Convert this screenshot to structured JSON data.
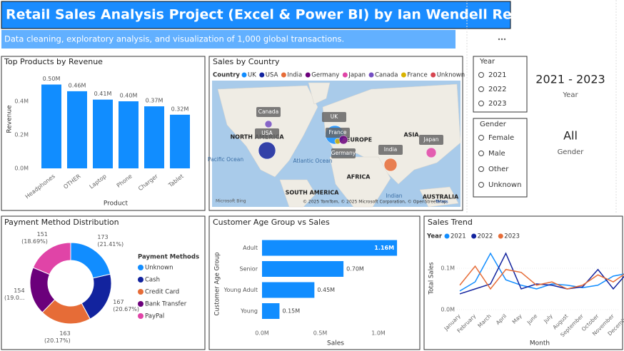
{
  "header": {
    "title": "Retail Sales Analysis Project (Excel & Power BI) by Ian Wendell Real",
    "subtitle": "Data cleaning, exploratory analysis, and visualization of 1,000 global transactions."
  },
  "chart_data": [
    {
      "type": "bar",
      "title": "Top Products by Revenue",
      "x_label": "Product",
      "y_label": "Revenue",
      "categories": [
        "Headphones",
        "OTHER",
        "Laptop",
        "Phone",
        "Charger",
        "Tablet"
      ],
      "values": [
        0.5,
        0.46,
        0.41,
        0.4,
        0.37,
        0.32
      ],
      "value_labels": [
        "0.50M",
        "0.46M",
        "0.41M",
        "0.40M",
        "0.37M",
        "0.32M"
      ],
      "color": "#118DFF",
      "ylim": [
        0,
        0.55
      ],
      "yticks": [
        {
          "value": 0,
          "label": "0.0M"
        },
        {
          "value": 0.2,
          "label": "0.2M"
        },
        {
          "value": 0.4,
          "label": "0.4M"
        }
      ]
    },
    {
      "type": "donut",
      "title": "Payment Method Distribution",
      "legend_title": "Payment Methods",
      "categories": [
        "Unknown",
        "Cash",
        "Credit Card",
        "Bank Transfer",
        "PayPal"
      ],
      "values": [
        173,
        167,
        163,
        154,
        151
      ],
      "percent_labels": [
        "(21.41%)",
        "(20.67%)",
        "(20.17%)",
        "(19.0...",
        "(18.69%)"
      ],
      "colors": [
        "#118DFF",
        "#12239E",
        "#E66C37",
        "#6B007B",
        "#E044A7"
      ]
    },
    {
      "type": "barh",
      "title": "Customer Age Group vs Sales",
      "x_label": "Sales",
      "y_label": "Customer Age Group",
      "categories": [
        "Adult",
        "Senior",
        "Young Adult",
        "Young"
      ],
      "values": [
        1.16,
        0.7,
        0.45,
        0.15
      ],
      "value_labels": [
        "1.16M",
        "0.70M",
        "0.45M",
        "0.15M"
      ],
      "color": "#118DFF",
      "xlim": [
        0,
        1.25
      ],
      "xticks": [
        {
          "value": 0,
          "label": "0.0M"
        },
        {
          "value": 0.5,
          "label": "0.5M"
        },
        {
          "value": 1,
          "label": "1.0M"
        }
      ]
    },
    {
      "type": "line",
      "title": "Sales Trend",
      "x_label": "Month",
      "y_label": "Total Sales",
      "legend_title": "Year",
      "categories": [
        "January",
        "February",
        "March",
        "April",
        "May",
        "June",
        "July",
        "August",
        "September",
        "October",
        "November",
        "December"
      ],
      "series": [
        {
          "name": "2021",
          "color": "#118DFF",
          "values": [
            0.045,
            0.067,
            0.136,
            0.072,
            0.059,
            0.05,
            0.062,
            0.059,
            0.053,
            0.059,
            0.081,
            0.088
          ]
        },
        {
          "name": "2022",
          "color": "#12239E",
          "values": [
            0.038,
            0.05,
            0.062,
            0.136,
            0.05,
            0.062,
            0.059,
            0.05,
            0.055,
            0.097,
            0.05,
            0.093
          ]
        },
        {
          "name": "2023",
          "color": "#E66C37",
          "values": [
            0.059,
            0.105,
            0.05,
            0.097,
            0.09,
            0.059,
            0.067,
            0.05,
            0.059,
            0.084,
            0.067,
            0.093
          ]
        }
      ],
      "ylim": [
        0,
        0.15
      ],
      "yticks": [
        {
          "value": 0,
          "label": "0.0M"
        },
        {
          "value": 0.1,
          "label": "0.1M"
        }
      ]
    }
  ],
  "map": {
    "title": "Sales by Country",
    "legend_title": "Country",
    "countries": [
      {
        "name": "UK",
        "color": "#118DFF"
      },
      {
        "name": "USA",
        "color": "#12239E"
      },
      {
        "name": "India",
        "color": "#E66C37"
      },
      {
        "name": "Germany",
        "color": "#6B007B"
      },
      {
        "name": "Japan",
        "color": "#E044A7"
      },
      {
        "name": "Canada",
        "color": "#744EC2"
      },
      {
        "name": "France",
        "color": "#D9B300"
      },
      {
        "name": "Unknown",
        "color": "#D64550"
      }
    ],
    "labels": [
      "NORTH AMERICA",
      "EUROPE",
      "ASIA",
      "AFRICA",
      "SOUTH AMERICA",
      "AUSTRALIA",
      "Pacific Ocean",
      "Atlantic Ocean",
      "Indian"
    ],
    "attribution": "© 2025 TomTom, © 2025 Microsoft Corporation, © OpenStreetMap",
    "terms": "Terms",
    "logo": "Microsoft Bing"
  },
  "slicers": [
    {
      "title": "Year",
      "options": [
        "2021",
        "2022",
        "2023"
      ]
    },
    {
      "title": "Gender",
      "options": [
        "Female",
        "Male",
        "Other",
        "Unknown"
      ]
    }
  ],
  "cards": [
    {
      "value": "2021 - 2023",
      "label": "Year"
    },
    {
      "value": "All",
      "label": "Gender"
    }
  ]
}
